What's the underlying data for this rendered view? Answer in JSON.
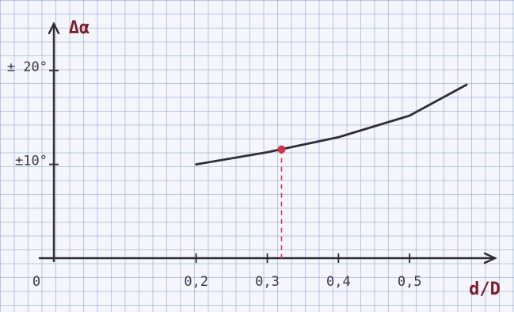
{
  "chart_data": {
    "type": "line",
    "x_label": "d/D",
    "y_label": "Δα",
    "x": [
      0.2,
      0.3,
      0.4,
      0.5,
      0.58
    ],
    "series": [
      {
        "color": "#2e2e36",
        "values": [
          10,
          11.3,
          12.9,
          15.2,
          18.5
        ]
      }
    ],
    "highlight": {
      "x": 0.32,
      "y": 11.6,
      "color": "#d0324a"
    },
    "xlim": [
      0,
      0.62
    ],
    "ylim": [
      0,
      25
    ],
    "xticks": [
      {
        "value": 0,
        "label": "0"
      },
      {
        "value": 0.2,
        "label": "0,2"
      },
      {
        "value": 0.3,
        "label": "0,3"
      },
      {
        "value": 0.4,
        "label": "0,4"
      },
      {
        "value": 0.5,
        "label": "0,5"
      }
    ],
    "yticks": [
      {
        "value": 10,
        "label": "±10°"
      },
      {
        "value": 20,
        "label": "± 20°"
      }
    ]
  }
}
